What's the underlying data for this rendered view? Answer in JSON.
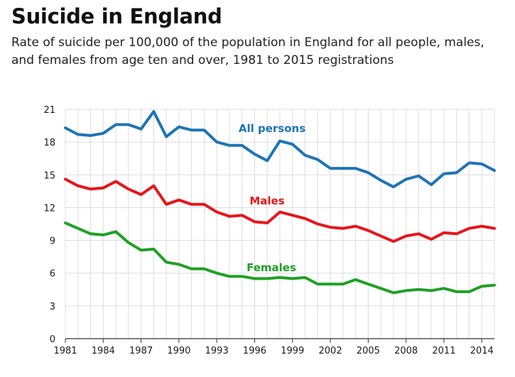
{
  "chart_data": {
    "type": "line",
    "title": "Suicide in England",
    "subtitle": "Rate of suicide per 100,000 of the population in England for all people, males, and females from age ten and over, 1981 to 2015 registrations",
    "xlabel": "",
    "ylabel": "",
    "xlim": [
      1981,
      2015
    ],
    "ylim": [
      0,
      21
    ],
    "yticks": [
      0,
      3,
      6,
      9,
      12,
      15,
      18,
      21
    ],
    "xtick_labels": [
      "1981",
      "1984",
      "1987",
      "1990",
      "1993",
      "1996",
      "1999",
      "2002",
      "2005",
      "2008",
      "2011",
      "2014"
    ],
    "grid": true,
    "legend": "labels placed directly on lines",
    "x": [
      1981,
      1982,
      1983,
      1984,
      1985,
      1986,
      1987,
      1988,
      1989,
      1990,
      1991,
      1992,
      1993,
      1994,
      1995,
      1996,
      1997,
      1998,
      1999,
      2000,
      2001,
      2002,
      2003,
      2004,
      2005,
      2006,
      2007,
      2008,
      2009,
      2010,
      2011,
      2012,
      2013,
      2014,
      2015
    ],
    "series": [
      {
        "name": "All persons",
        "color": "#1f74b4",
        "values": [
          19.3,
          18.7,
          18.6,
          18.8,
          19.6,
          19.6,
          19.2,
          20.8,
          18.5,
          19.4,
          19.1,
          19.1,
          18.0,
          17.7,
          17.7,
          16.9,
          16.3,
          18.1,
          17.8,
          16.8,
          16.4,
          15.6,
          15.6,
          15.6,
          15.2,
          14.5,
          13.9,
          14.6,
          14.9,
          14.1,
          15.1,
          15.2,
          16.1,
          16.0,
          15.4
        ]
      },
      {
        "name": "Males",
        "color": "#e8151b",
        "values": [
          14.6,
          14.0,
          13.7,
          13.8,
          14.4,
          13.7,
          13.2,
          14.0,
          12.3,
          12.7,
          12.3,
          12.3,
          11.6,
          11.2,
          11.3,
          10.7,
          10.6,
          11.6,
          11.3,
          11.0,
          10.5,
          10.2,
          10.1,
          10.3,
          9.9,
          9.4,
          8.9,
          9.4,
          9.6,
          9.1,
          9.7,
          9.6,
          10.1,
          10.3,
          10.1
        ]
      },
      {
        "name": "Females",
        "color": "#1fa024",
        "values": [
          10.6,
          10.1,
          9.6,
          9.5,
          9.8,
          8.8,
          8.1,
          8.2,
          7.0,
          6.8,
          6.4,
          6.4,
          6.0,
          5.7,
          5.7,
          5.5,
          5.5,
          5.6,
          5.5,
          5.6,
          5.0,
          5.0,
          5.0,
          5.4,
          5.0,
          4.6,
          4.2,
          4.4,
          4.5,
          4.4,
          4.6,
          4.3,
          4.3,
          4.8,
          4.9
        ]
      }
    ]
  }
}
